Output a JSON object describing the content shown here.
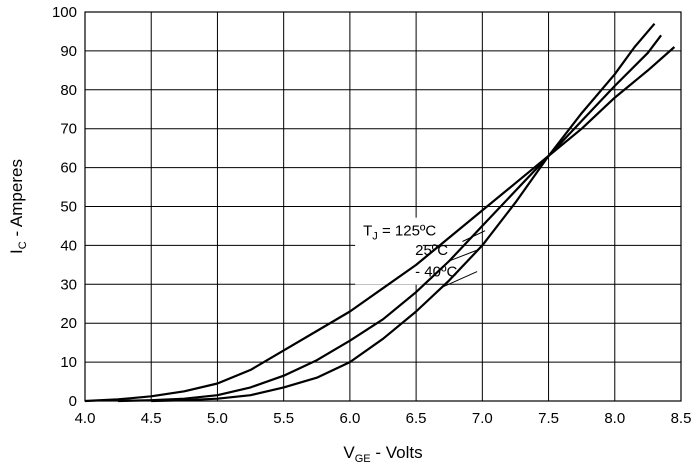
{
  "chart_data": {
    "type": "line",
    "title": "",
    "xlabel": {
      "main": "V",
      "sub": "GE",
      "rest": " - Volts"
    },
    "ylabel": {
      "main": "I",
      "sub": "C",
      "rest": " - Amperes"
    },
    "xlim": [
      4.0,
      8.5
    ],
    "ylim": [
      0,
      100
    ],
    "x_ticks": [
      "4.0",
      "4.5",
      "5.0",
      "5.5",
      "6.0",
      "6.5",
      "7.0",
      "7.5",
      "8.0",
      "8.5"
    ],
    "y_ticks": [
      "0",
      "10",
      "20",
      "30",
      "40",
      "50",
      "60",
      "70",
      "80",
      "90",
      "100"
    ],
    "grid": true,
    "legend": "none",
    "line_color": "#000000",
    "annotation_prefix": {
      "main": "T",
      "sub": "J",
      "rest": "  = "
    },
    "series": [
      {
        "name": "125ºC",
        "x": [
          4.0,
          4.25,
          4.5,
          4.75,
          5.0,
          5.25,
          5.5,
          5.75,
          6.0,
          6.25,
          6.5,
          6.75,
          7.0,
          7.25,
          7.5,
          7.75,
          8.0,
          8.25,
          8.45
        ],
        "y": [
          0,
          0.4,
          1.2,
          2.5,
          4.5,
          8,
          13,
          18,
          23,
          29,
          35,
          42,
          49,
          56,
          63,
          70,
          78,
          85,
          91
        ]
      },
      {
        "name": "25ºC",
        "x": [
          4.25,
          4.5,
          4.75,
          5.0,
          5.25,
          5.5,
          5.75,
          6.0,
          6.25,
          6.5,
          6.75,
          7.0,
          7.25,
          7.5,
          7.75,
          8.0,
          8.25,
          8.35
        ],
        "y": [
          0,
          0.2,
          0.6,
          1.5,
          3.5,
          6.5,
          10.5,
          15.5,
          21,
          28,
          36,
          45,
          54,
          63,
          72,
          81,
          89.5,
          94
        ]
      },
      {
        "name": "- 40ºC",
        "x": [
          4.5,
          4.75,
          5.0,
          5.25,
          5.5,
          5.75,
          6.0,
          6.25,
          6.5,
          6.75,
          7.0,
          7.25,
          7.5,
          7.75,
          8.0,
          8.15,
          8.3
        ],
        "y": [
          0,
          0.2,
          0.6,
          1.5,
          3.5,
          6,
          10,
          16,
          23,
          31,
          40,
          51,
          63,
          74,
          84,
          91,
          97
        ]
      }
    ],
    "annotations": [
      {
        "series": "125ºC",
        "label_x": 6.1,
        "label_y": 42.5,
        "point_x": 6.85,
        "point_y": 41
      },
      {
        "series": "25ºC",
        "label_x": 6.1,
        "label_y": 37.5,
        "point_x": 6.75,
        "point_y": 36
      },
      {
        "series": "- 40ºC",
        "label_x": 6.1,
        "label_y": 32,
        "point_x": 6.68,
        "point_y": 29
      }
    ]
  }
}
